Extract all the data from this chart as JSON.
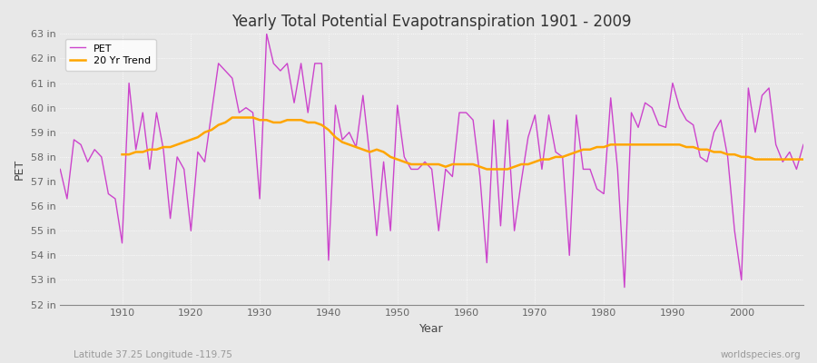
{
  "title": "Yearly Total Potential Evapotranspiration 1901 - 2009",
  "xlabel": "Year",
  "ylabel": "PET",
  "subtitle_left": "Latitude 37.25 Longitude -119.75",
  "subtitle_right": "worldspecies.org",
  "ylim": [
    52,
    63
  ],
  "ytick_labels": [
    "52 in",
    "53 in",
    "54 in",
    "55 in",
    "56 in",
    "57 in",
    "58 in",
    "59 in",
    "60 in",
    "61 in",
    "62 in",
    "63 in"
  ],
  "ytick_values": [
    52,
    53,
    54,
    55,
    56,
    57,
    58,
    59,
    60,
    61,
    62,
    63
  ],
  "pet_color": "#CC44CC",
  "trend_color": "#FFA500",
  "bg_color": "#E8E8E8",
  "grid_color": "#FFFFFF",
  "years": [
    1901,
    1902,
    1903,
    1904,
    1905,
    1906,
    1907,
    1908,
    1909,
    1910,
    1911,
    1912,
    1913,
    1914,
    1915,
    1916,
    1917,
    1918,
    1919,
    1920,
    1921,
    1922,
    1923,
    1924,
    1925,
    1926,
    1927,
    1928,
    1929,
    1930,
    1931,
    1932,
    1933,
    1934,
    1935,
    1936,
    1937,
    1938,
    1939,
    1940,
    1941,
    1942,
    1943,
    1944,
    1945,
    1946,
    1947,
    1948,
    1949,
    1950,
    1951,
    1952,
    1953,
    1954,
    1955,
    1956,
    1957,
    1958,
    1959,
    1960,
    1961,
    1962,
    1963,
    1964,
    1965,
    1966,
    1967,
    1968,
    1969,
    1970,
    1971,
    1972,
    1973,
    1974,
    1975,
    1976,
    1977,
    1978,
    1979,
    1980,
    1981,
    1982,
    1983,
    1984,
    1985,
    1986,
    1987,
    1988,
    1989,
    1990,
    1991,
    1992,
    1993,
    1994,
    1995,
    1996,
    1997,
    1998,
    1999,
    2000,
    2001,
    2002,
    2003,
    2004,
    2005,
    2006,
    2007,
    2008,
    2009
  ],
  "pet_values": [
    57.5,
    56.3,
    58.7,
    58.5,
    57.8,
    58.3,
    58.0,
    56.5,
    56.3,
    54.5,
    61.0,
    58.3,
    59.8,
    57.5,
    59.8,
    58.3,
    55.5,
    58.0,
    57.5,
    55.0,
    58.2,
    57.8,
    59.8,
    61.8,
    61.5,
    61.2,
    59.8,
    60.0,
    59.8,
    56.3,
    63.0,
    61.8,
    61.5,
    61.8,
    60.2,
    61.8,
    59.8,
    61.8,
    61.8,
    53.8,
    60.1,
    58.7,
    59.0,
    58.4,
    60.5,
    58.0,
    54.8,
    57.8,
    55.0,
    60.1,
    58.0,
    57.5,
    57.5,
    57.8,
    57.5,
    55.0,
    57.5,
    57.2,
    59.8,
    59.8,
    59.5,
    57.2,
    53.7,
    59.5,
    55.2,
    59.5,
    55.0,
    57.0,
    58.8,
    59.7,
    57.5,
    59.7,
    58.2,
    58.0,
    54.0,
    59.7,
    57.5,
    57.5,
    56.7,
    56.5,
    60.4,
    57.5,
    52.7,
    59.8,
    59.2,
    60.2,
    60.0,
    59.3,
    59.2,
    61.0,
    60.0,
    59.5,
    59.3,
    58.0,
    57.8,
    59.0,
    59.5,
    58.0,
    55.0,
    53.0,
    60.8,
    59.0,
    60.5,
    60.8,
    58.5,
    57.8,
    58.2,
    57.5,
    58.5
  ],
  "trend_years": [
    1910,
    1911,
    1912,
    1913,
    1914,
    1915,
    1916,
    1917,
    1918,
    1919,
    1920,
    1921,
    1922,
    1923,
    1924,
    1925,
    1926,
    1927,
    1928,
    1929,
    1930,
    1931,
    1932,
    1933,
    1934,
    1935,
    1936,
    1937,
    1938,
    1939,
    1940,
    1941,
    1942,
    1943,
    1944,
    1945,
    1946,
    1947,
    1948,
    1949,
    1950,
    1951,
    1952,
    1953,
    1954,
    1955,
    1956,
    1957,
    1958,
    1959,
    1960,
    1961,
    1962,
    1963,
    1964,
    1965,
    1966,
    1967,
    1968,
    1969,
    1970,
    1971,
    1972,
    1973,
    1974,
    1975,
    1976,
    1977,
    1978,
    1979,
    1980,
    1981,
    1982,
    1983,
    1984,
    1985,
    1986,
    1987,
    1988,
    1989,
    1990,
    1991,
    1992,
    1993,
    1994,
    1995,
    1996,
    1997,
    1998,
    1999,
    2000,
    2001,
    2002,
    2003,
    2004,
    2005,
    2006,
    2007,
    2008,
    2009
  ],
  "trend_values": [
    58.1,
    58.1,
    58.2,
    58.2,
    58.3,
    58.3,
    58.4,
    58.4,
    58.5,
    58.6,
    58.7,
    58.8,
    59.0,
    59.1,
    59.3,
    59.4,
    59.6,
    59.6,
    59.6,
    59.6,
    59.5,
    59.5,
    59.4,
    59.4,
    59.5,
    59.5,
    59.5,
    59.4,
    59.4,
    59.3,
    59.1,
    58.8,
    58.6,
    58.5,
    58.4,
    58.3,
    58.2,
    58.3,
    58.2,
    58.0,
    57.9,
    57.8,
    57.7,
    57.7,
    57.7,
    57.7,
    57.7,
    57.6,
    57.7,
    57.7,
    57.7,
    57.7,
    57.6,
    57.5,
    57.5,
    57.5,
    57.5,
    57.6,
    57.7,
    57.7,
    57.8,
    57.9,
    57.9,
    58.0,
    58.0,
    58.1,
    58.2,
    58.3,
    58.3,
    58.4,
    58.4,
    58.5,
    58.5,
    58.5,
    58.5,
    58.5,
    58.5,
    58.5,
    58.5,
    58.5,
    58.5,
    58.5,
    58.4,
    58.4,
    58.3,
    58.3,
    58.2,
    58.2,
    58.1,
    58.1,
    58.0,
    58.0,
    57.9,
    57.9,
    57.9,
    57.9,
    57.9,
    57.9,
    57.9,
    57.9
  ]
}
